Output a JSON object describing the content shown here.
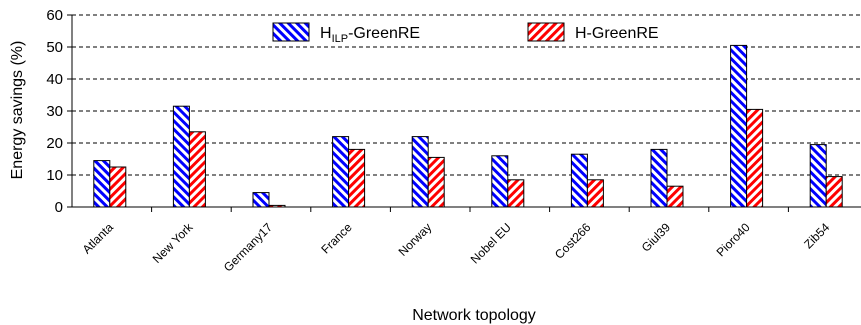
{
  "chart_data": {
    "type": "bar",
    "title": "",
    "xlabel": "Network topology",
    "ylabel": "Energy savings (%)",
    "ylim": [
      0,
      60
    ],
    "yticks": [
      0,
      10,
      20,
      30,
      40,
      50,
      60
    ],
    "ytick_labels": [
      "0",
      "10",
      "20",
      "30",
      "40",
      "50",
      "60"
    ],
    "grid": "horizontal dashed",
    "legend": "top",
    "categories": [
      "Atlanta",
      "New York",
      "Germany17",
      "France",
      "Norway",
      "Nobel EU",
      "Cost266",
      "Giul39",
      "Pioro40",
      "Zib54"
    ],
    "series": [
      {
        "name": "HILP-GreenRE",
        "name_base": "H",
        "name_sub": "ILP",
        "name_suffix": "-GreenRE",
        "color": "#0000ff",
        "pattern": "diagonal-stripes-blue",
        "values": [
          14.5,
          31.5,
          4.5,
          22,
          22,
          16,
          16.5,
          18,
          50.5,
          19.5
        ]
      },
      {
        "name": "H-GreenRE",
        "color": "#ff0000",
        "pattern": "diagonal-stripes-red",
        "values": [
          12.5,
          23.5,
          0.5,
          18,
          15.5,
          8.5,
          8.5,
          6.5,
          30.5,
          9.5
        ]
      }
    ]
  }
}
